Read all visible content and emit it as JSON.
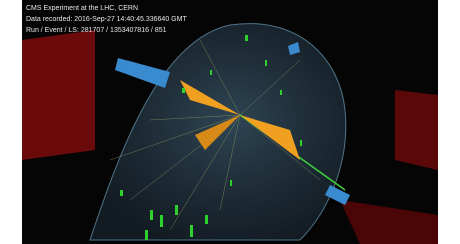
{
  "caption": {
    "lines": [
      "CMS Experiment at the LHC, CERN",
      "Data recorded: 2016-Sep-27 14:40:45.336640 GMT",
      "Run / Event / LS: 281707 / 1353407816 / 851"
    ]
  }
}
